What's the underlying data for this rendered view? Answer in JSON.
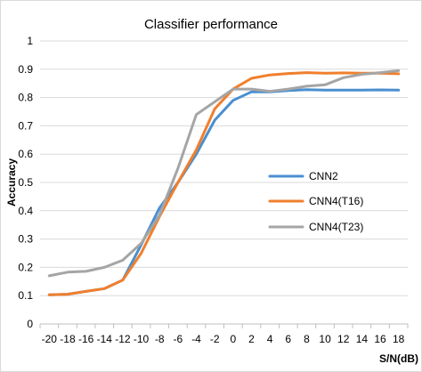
{
  "chart_data": {
    "type": "line",
    "title": "Classifier performance",
    "xlabel": "S/N(dB)",
    "ylabel": "Accuracy",
    "x": [
      -20,
      -18,
      -16,
      -14,
      -12,
      -10,
      -8,
      -6,
      -4,
      -2,
      0,
      2,
      4,
      6,
      8,
      10,
      12,
      14,
      16,
      18
    ],
    "ylim": [
      0,
      1
    ],
    "yticks": [
      "0",
      "0.1",
      "0.2",
      "0.3",
      "0.4",
      "0.5",
      "0.6",
      "0.7",
      "0.8",
      "0.9",
      "1"
    ],
    "grid": true,
    "legend_position": "right-center",
    "series": [
      {
        "name": "CNN2",
        "color": "#4a8fd0",
        "values": [
          0.103,
          0.105,
          0.115,
          0.125,
          0.155,
          0.28,
          0.41,
          0.5,
          0.6,
          0.72,
          0.79,
          0.82,
          0.82,
          0.825,
          0.828,
          0.826,
          0.826,
          0.826,
          0.827,
          0.826
        ]
      },
      {
        "name": "CNN4(T16)",
        "color": "#f07f2d",
        "values": [
          0.103,
          0.105,
          0.115,
          0.125,
          0.155,
          0.25,
          0.38,
          0.5,
          0.615,
          0.76,
          0.83,
          0.868,
          0.88,
          0.885,
          0.888,
          0.886,
          0.887,
          0.886,
          0.886,
          0.884
        ]
      },
      {
        "name": "CNN4(T23)",
        "color": "#a5a5a5",
        "values": [
          0.17,
          0.183,
          0.186,
          0.2,
          0.225,
          0.285,
          0.385,
          0.55,
          0.74,
          0.785,
          0.83,
          0.83,
          0.822,
          0.83,
          0.84,
          0.845,
          0.87,
          0.882,
          0.888,
          0.895
        ]
      }
    ]
  }
}
